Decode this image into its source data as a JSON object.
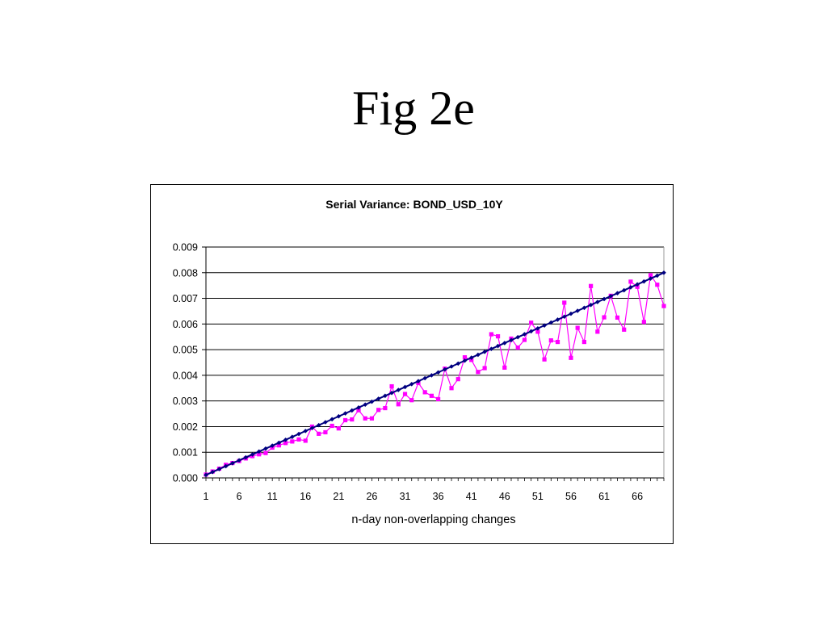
{
  "slide": {
    "title": "Fig 2e"
  },
  "chart_data": {
    "type": "line",
    "title": "Serial Variance: BOND_USD_10Y",
    "xlabel": "n-day non-overlapping changes",
    "ylabel": "",
    "x": [
      1,
      2,
      3,
      4,
      5,
      6,
      7,
      8,
      9,
      10,
      11,
      12,
      13,
      14,
      15,
      16,
      17,
      18,
      19,
      20,
      21,
      22,
      23,
      24,
      25,
      26,
      27,
      28,
      29,
      30,
      31,
      32,
      33,
      34,
      35,
      36,
      37,
      38,
      39,
      40,
      41,
      42,
      43,
      44,
      45,
      46,
      47,
      48,
      49,
      50,
      51,
      52,
      53,
      54,
      55,
      56,
      57,
      58,
      59,
      60,
      61,
      62,
      63,
      64,
      65,
      66,
      67,
      68,
      69,
      70
    ],
    "xtick_labels": [
      "1",
      "6",
      "11",
      "16",
      "21",
      "26",
      "31",
      "36",
      "41",
      "46",
      "51",
      "56",
      "61",
      "66"
    ],
    "ytick_labels": [
      "0.000",
      "0.001",
      "0.002",
      "0.003",
      "0.004",
      "0.005",
      "0.006",
      "0.007",
      "0.008",
      "0.009"
    ],
    "ylim": [
      0,
      0.009
    ],
    "xlim": [
      1,
      70
    ],
    "grid": true,
    "series": [
      {
        "color": "#000080",
        "marker": "diamond",
        "values": [
          0.000114,
          0.000229,
          0.000343,
          0.000457,
          0.000571,
          0.000686,
          0.0008,
          0.000914,
          0.001029,
          0.001143,
          0.001257,
          0.001371,
          0.001486,
          0.0016,
          0.001714,
          0.001829,
          0.001943,
          0.002057,
          0.002171,
          0.002286,
          0.0024,
          0.002514,
          0.002629,
          0.002743,
          0.002857,
          0.002971,
          0.003086,
          0.0032,
          0.003314,
          0.003429,
          0.003543,
          0.003657,
          0.003771,
          0.003886,
          0.004,
          0.004114,
          0.004229,
          0.004343,
          0.004457,
          0.004571,
          0.004686,
          0.0048,
          0.004914,
          0.005029,
          0.005143,
          0.005257,
          0.005371,
          0.005486,
          0.0056,
          0.005714,
          0.005829,
          0.005943,
          0.006057,
          0.006171,
          0.006286,
          0.0064,
          0.006514,
          0.006629,
          0.006743,
          0.006857,
          0.006971,
          0.007086,
          0.0072,
          0.007314,
          0.007429,
          0.007543,
          0.007657,
          0.007771,
          0.007886,
          0.008
        ]
      },
      {
        "color": "#FF00FF",
        "marker": "square",
        "values": [
          0.00013,
          0.00025,
          0.00036,
          0.00051,
          0.00058,
          0.00066,
          0.00076,
          0.00085,
          0.00092,
          0.00097,
          0.00118,
          0.00127,
          0.00136,
          0.00142,
          0.0015,
          0.00145,
          0.002,
          0.00172,
          0.00178,
          0.00203,
          0.00193,
          0.00225,
          0.00228,
          0.00264,
          0.00232,
          0.00232,
          0.00265,
          0.00272,
          0.00357,
          0.00287,
          0.00327,
          0.00303,
          0.0037,
          0.00334,
          0.0032,
          0.00307,
          0.00426,
          0.0035,
          0.00385,
          0.0047,
          0.0046,
          0.00413,
          0.00428,
          0.0056,
          0.00552,
          0.0043,
          0.00543,
          0.00508,
          0.00538,
          0.00605,
          0.0057,
          0.00462,
          0.00536,
          0.0053,
          0.00683,
          0.00468,
          0.00585,
          0.0053,
          0.00748,
          0.0057,
          0.00626,
          0.0071,
          0.00625,
          0.00578,
          0.00765,
          0.00745,
          0.00608,
          0.0079,
          0.00753,
          0.0067
        ]
      }
    ]
  }
}
